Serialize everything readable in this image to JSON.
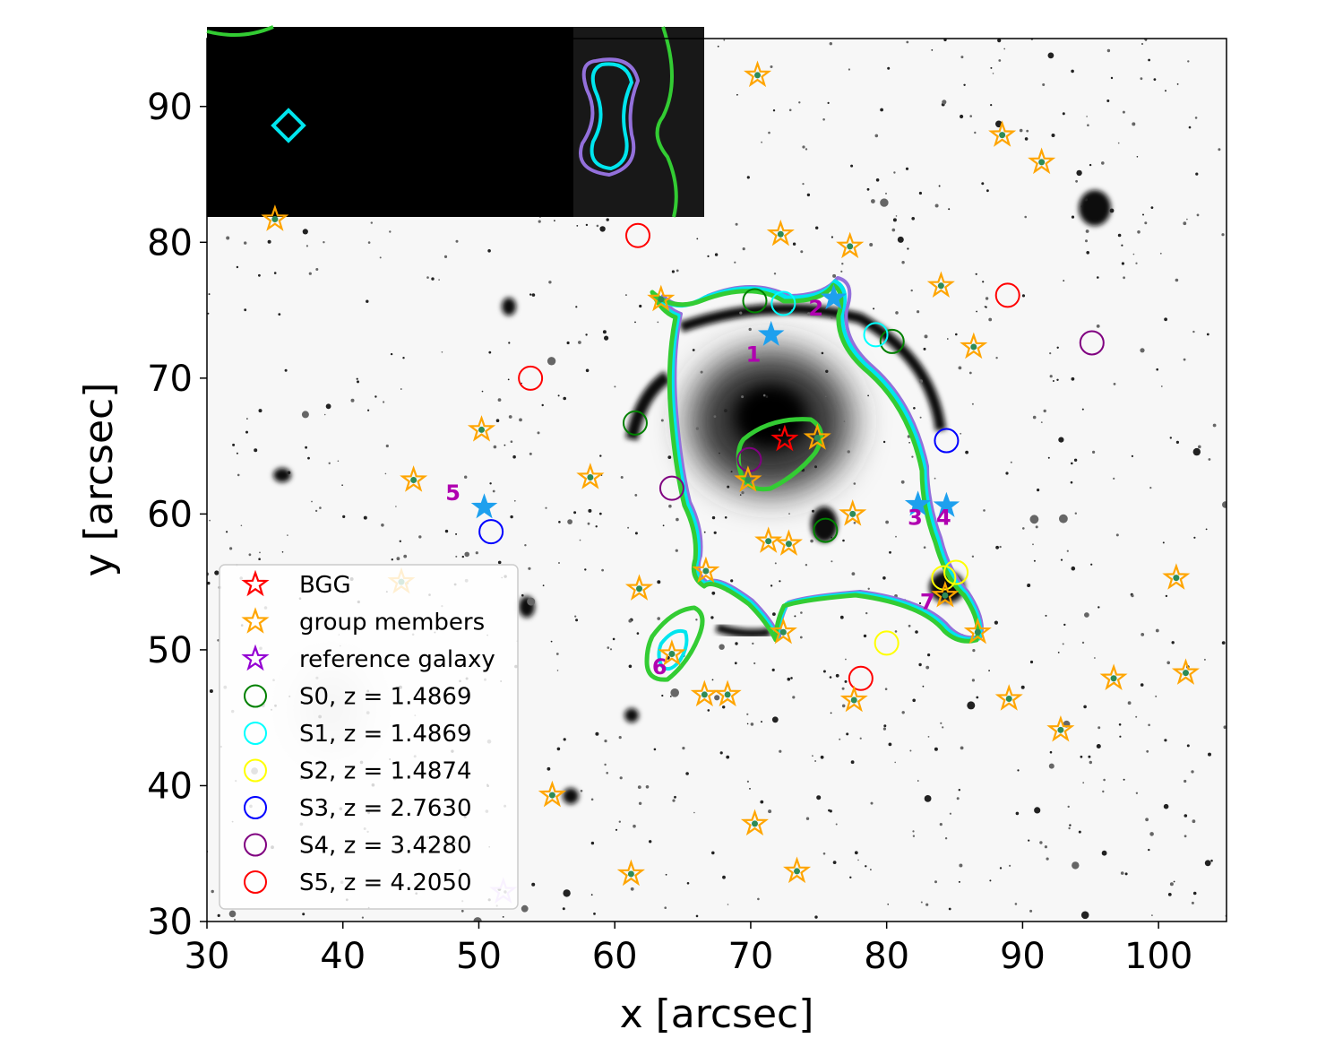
{
  "chart_data": {
    "type": "scatter",
    "xlabel": "x [arcsec]",
    "ylabel": "y [arcsec]",
    "xlim": [
      30,
      105
    ],
    "ylim": [
      30,
      95
    ],
    "xticks": [
      30,
      40,
      50,
      60,
      70,
      80,
      90,
      100
    ],
    "yticks": [
      30,
      40,
      50,
      60,
      70,
      80,
      90
    ],
    "grid": false,
    "legend_position": "lower-left",
    "background": "inverted grayscale sky image",
    "legend": [
      {
        "label": "BGG",
        "marker": "star-open",
        "color": "#ff0000"
      },
      {
        "label": "group members",
        "marker": "star-open",
        "color": "#ffa500"
      },
      {
        "label": "reference galaxy",
        "marker": "star-open",
        "color": "#9400d3"
      },
      {
        "label": "S0, z = 1.4869",
        "marker": "circle-open",
        "color": "#008000"
      },
      {
        "label": "S1, z = 1.4869",
        "marker": "circle-open",
        "color": "#00ffff"
      },
      {
        "label": "S2, z = 1.4874",
        "marker": "circle-open",
        "color": "#ffff00"
      },
      {
        "label": "S3, z = 2.7630",
        "marker": "circle-open",
        "color": "#0000ff"
      },
      {
        "label": "S4, z = 3.4280",
        "marker": "circle-open",
        "color": "#800080"
      },
      {
        "label": "S5, z = 4.2050",
        "marker": "circle-open",
        "color": "#ff0000"
      }
    ],
    "bgg": [
      [
        72.5,
        65.5
      ]
    ],
    "reference_galaxy": [
      [
        51.8,
        32.2
      ]
    ],
    "group_members": [
      [
        35.0,
        81.7
      ],
      [
        70.5,
        92.3
      ],
      [
        88.5,
        87.9
      ],
      [
        91.4,
        85.9
      ],
      [
        72.2,
        80.6
      ],
      [
        77.3,
        79.7
      ],
      [
        63.4,
        75.8
      ],
      [
        84.0,
        76.8
      ],
      [
        86.4,
        72.3
      ],
      [
        50.2,
        66.2
      ],
      [
        45.2,
        62.5
      ],
      [
        58.2,
        62.7
      ],
      [
        74.9,
        65.6
      ],
      [
        69.8,
        62.5
      ],
      [
        77.5,
        60.0
      ],
      [
        71.3,
        58.0
      ],
      [
        72.8,
        57.8
      ],
      [
        61.8,
        54.5
      ],
      [
        66.7,
        55.8
      ],
      [
        44.3,
        55.0
      ],
      [
        101.3,
        55.3
      ],
      [
        84.3,
        54.0
      ],
      [
        72.4,
        51.3
      ],
      [
        86.7,
        51.3
      ],
      [
        64.2,
        49.7
      ],
      [
        66.6,
        46.7
      ],
      [
        68.3,
        46.7
      ],
      [
        77.6,
        46.3
      ],
      [
        89.0,
        46.4
      ],
      [
        96.7,
        47.9
      ],
      [
        102.0,
        48.3
      ],
      [
        92.8,
        44.1
      ],
      [
        55.4,
        39.3
      ],
      [
        70.3,
        37.2
      ],
      [
        61.2,
        33.5
      ],
      [
        73.4,
        33.7
      ]
    ],
    "image_labels": [
      {
        "text": "1",
        "x": 70.2,
        "y": 71.2
      },
      {
        "text": "2",
        "x": 74.8,
        "y": 74.6
      },
      {
        "text": "3",
        "x": 82.1,
        "y": 59.2
      },
      {
        "text": "4",
        "x": 84.2,
        "y": 59.2
      },
      {
        "text": "5",
        "x": 48.1,
        "y": 61.0
      },
      {
        "text": "6",
        "x": 63.3,
        "y": 48.2
      },
      {
        "text": "7",
        "x": 83.0,
        "y": 53.0
      }
    ],
    "multiple_images": [
      [
        71.5,
        73.2
      ],
      [
        76.1,
        75.9
      ],
      [
        82.3,
        60.7
      ],
      [
        84.4,
        60.6
      ],
      [
        50.4,
        60.5
      ]
    ],
    "series": [
      {
        "name": "S0, z = 1.4869",
        "points": [
          [
            70.3,
            75.7
          ],
          [
            80.4,
            72.7
          ],
          [
            61.5,
            66.7
          ],
          [
            75.5,
            58.8
          ]
        ]
      },
      {
        "name": "S1, z = 1.4869",
        "points": [
          [
            72.4,
            75.5
          ],
          [
            79.2,
            73.2
          ]
        ]
      },
      {
        "name": "S2, z = 1.4874",
        "points": [
          [
            84.2,
            55.3
          ],
          [
            85.1,
            55.7
          ],
          [
            80.0,
            50.5
          ]
        ]
      },
      {
        "name": "S3, z = 2.7630",
        "points": [
          [
            84.4,
            65.4
          ],
          [
            50.9,
            58.7
          ]
        ]
      },
      {
        "name": "S4, z = 3.4280",
        "points": [
          [
            95.1,
            72.6
          ],
          [
            69.9,
            64.0
          ],
          [
            64.2,
            61.9
          ]
        ]
      },
      {
        "name": "S5, z = 4.2050",
        "points": [
          [
            61.7,
            80.5
          ],
          [
            88.9,
            76.1
          ],
          [
            53.8,
            70.0
          ],
          [
            78.1,
            47.9
          ]
        ]
      }
    ]
  }
}
